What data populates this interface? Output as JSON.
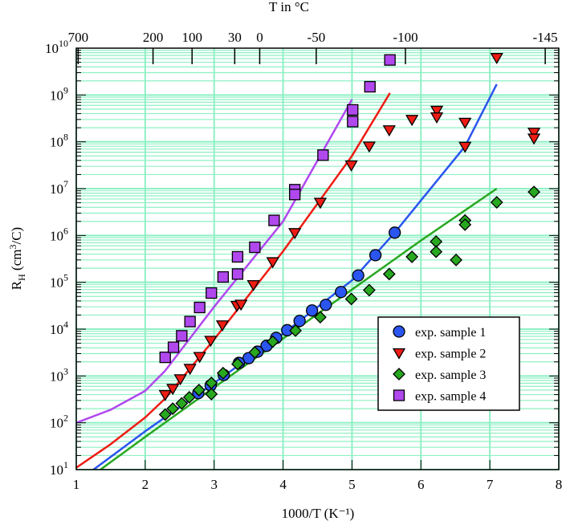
{
  "chart_data": {
    "type": "scatter",
    "xlabel": "1000/T (K⁻¹)",
    "ylabel": {
      "main": "R",
      "sub": "H",
      "mid": " (cm",
      "sup": "3",
      "end": "/C)"
    },
    "top_axis_label": "T in  °C",
    "xlim": [
      1,
      8
    ],
    "ylim": [
      10,
      10000000000.0
    ],
    "yscale": "log",
    "grid": true,
    "legend_position": "lower-right",
    "x_ticks": [
      "1",
      "2",
      "3",
      "4",
      "5",
      "6",
      "7",
      "8"
    ],
    "y_ticks": [
      {
        "base": "10",
        "exp": "1"
      },
      {
        "base": "10",
        "exp": "2"
      },
      {
        "base": "10",
        "exp": "3"
      },
      {
        "base": "10",
        "exp": "4"
      },
      {
        "base": "10",
        "exp": "5"
      },
      {
        "base": "10",
        "exp": "6"
      },
      {
        "base": "10",
        "exp": "7"
      },
      {
        "base": "10",
        "exp": "8"
      },
      {
        "base": "10",
        "exp": "9"
      },
      {
        "base": "10",
        "exp": "10"
      }
    ],
    "top_ticks": [
      {
        "label": "700",
        "celsius": 700
      },
      {
        "label": "200",
        "celsius": 200
      },
      {
        "label": "100",
        "celsius": 100
      },
      {
        "label": "30",
        "celsius": 30
      },
      {
        "label": "0",
        "celsius": 0
      },
      {
        "label": "-50",
        "celsius": -50
      },
      {
        "label": "-100",
        "celsius": -100
      },
      {
        "label": "-145",
        "celsius": -145
      }
    ],
    "colors": {
      "grid": "#8ef0c4",
      "sample1": "#2a55ee",
      "sample2": "#ee1c14",
      "sample3": "#28a820",
      "sample4": "#b048ee"
    },
    "series": [
      {
        "name": "exp. sample 1",
        "marker": "circle",
        "color": "#2a55ee",
        "points": [
          [
            5.62,
            1150000.0
          ],
          [
            5.34,
            380000.0
          ],
          [
            5.09,
            140000.0
          ],
          [
            4.84,
            62000.0
          ],
          [
            4.62,
            33000.0
          ],
          [
            4.42,
            25000.0
          ],
          [
            4.24,
            15000.0
          ],
          [
            4.06,
            9500.0
          ],
          [
            3.9,
            6500.0
          ],
          [
            3.76,
            4400.0
          ],
          [
            3.63,
            3300.0
          ],
          [
            3.5,
            2400.0
          ],
          [
            3.36,
            1900.0
          ],
          [
            3.14,
            1050.0
          ],
          [
            2.95,
            630
          ],
          [
            2.77,
            430
          ]
        ]
      },
      {
        "name": "exp. sample 2",
        "marker": "triangle-down",
        "color": "#ee1c14",
        "points": [
          [
            2.29,
            400
          ],
          [
            2.4,
            540
          ],
          [
            2.51,
            870
          ],
          [
            2.65,
            1450
          ],
          [
            2.79,
            2600
          ],
          [
            2.95,
            5750
          ],
          [
            3.12,
            12300.0
          ],
          [
            3.33,
            32000.0
          ],
          [
            3.39,
            34000.0
          ],
          [
            3.57,
            89000.0
          ],
          [
            3.85,
            275000.0
          ],
          [
            4.17,
            1150000.0
          ],
          [
            4.54,
            5100000.0
          ],
          [
            4.99,
            32000000.0
          ],
          [
            5.25,
            81000000.0
          ],
          [
            5.54,
            180000000.0
          ],
          [
            5.87,
            300000000.0
          ],
          [
            6.23,
            470000000.0
          ],
          [
            6.23,
            340000000.0
          ],
          [
            6.64,
            260000000.0
          ],
          [
            6.64,
            80000000.0
          ],
          [
            7.1,
            6300000000.0
          ],
          [
            7.64,
            160000000.0
          ],
          [
            7.64,
            120000000.0
          ]
        ]
      },
      {
        "name": "exp. sample 3",
        "marker": "diamond",
        "color": "#28a820",
        "points": [
          [
            2.29,
            150
          ],
          [
            2.4,
            200
          ],
          [
            2.53,
            260
          ],
          [
            2.64,
            350
          ],
          [
            2.78,
            500
          ],
          [
            2.96,
            710
          ],
          [
            2.96,
            410
          ],
          [
            3.13,
            1150
          ],
          [
            3.34,
            1800
          ],
          [
            3.59,
            3200
          ],
          [
            3.85,
            5400
          ],
          [
            4.18,
            9300
          ],
          [
            4.54,
            18000.0
          ],
          [
            4.99,
            44000.0
          ],
          [
            5.25,
            68000.0
          ],
          [
            5.54,
            150000.0
          ],
          [
            5.87,
            350000.0
          ],
          [
            6.22,
            740000.0
          ],
          [
            6.22,
            450000.0
          ],
          [
            6.51,
            300000.0
          ],
          [
            6.64,
            2100000.0
          ],
          [
            6.64,
            1700000.0
          ],
          [
            7.1,
            5100000.0
          ],
          [
            7.64,
            8500000.0
          ]
        ]
      },
      {
        "name": "exp. sample 4",
        "marker": "square",
        "color": "#b048ee",
        "points": [
          [
            2.29,
            2500
          ],
          [
            2.41,
            4100
          ],
          [
            2.53,
            7200
          ],
          [
            2.65,
            14500.0
          ],
          [
            2.79,
            29000.0
          ],
          [
            2.96,
            59000.0
          ],
          [
            3.13,
            130000.0
          ],
          [
            3.34,
            350000.0
          ],
          [
            3.34,
            150000.0
          ],
          [
            3.59,
            560000.0
          ],
          [
            3.87,
            2100000.0
          ],
          [
            4.58,
            52000000.0
          ],
          [
            5.01,
            480000000.0
          ],
          [
            5.01,
            270000000.0
          ],
          [
            5.26,
            1500000000.0
          ],
          [
            5.55,
            5600000000.0
          ],
          [
            4.17,
            9500000.0
          ],
          [
            4.17,
            7500000.0
          ]
        ]
      }
    ],
    "fit_curves": [
      {
        "series": "exp. sample 4",
        "color": "#b048ee",
        "points": [
          [
            1,
            100
          ],
          [
            1.5,
            190
          ],
          [
            2,
            480
          ],
          [
            2.29,
            1300
          ],
          [
            3,
            30000.0
          ],
          [
            4,
            2000000.0
          ],
          [
            5,
            800000000.0
          ]
        ]
      },
      {
        "series": "exp. sample 2",
        "color": "#ee1c14",
        "points": [
          [
            1,
            11
          ],
          [
            1.5,
            35
          ],
          [
            2,
            130
          ],
          [
            2.29,
            330
          ],
          [
            3,
            6000
          ],
          [
            4,
            460000.0
          ],
          [
            5,
            50000000.0
          ],
          [
            5.55,
            1100000000.0
          ]
        ]
      },
      {
        "series": "exp. sample 1",
        "color": "#2a55ee",
        "points": [
          [
            1.25,
            10
          ],
          [
            2,
            66
          ],
          [
            3,
            710
          ],
          [
            4,
            8000
          ],
          [
            5,
            110000.0
          ],
          [
            5.62,
            1150000.0
          ],
          [
            6,
            5600000.0
          ],
          [
            6.64,
            80000000.0
          ],
          [
            7.1,
            1700000000.0
          ]
        ]
      },
      {
        "series": "exp. sample 3",
        "color": "#28a820",
        "points": [
          [
            1.35,
            10
          ],
          [
            2,
            50
          ],
          [
            3,
            570
          ],
          [
            4,
            6300
          ],
          [
            5,
            70000.0
          ],
          [
            6,
            780000.0
          ],
          [
            7.1,
            10000000.0
          ]
        ]
      }
    ]
  }
}
